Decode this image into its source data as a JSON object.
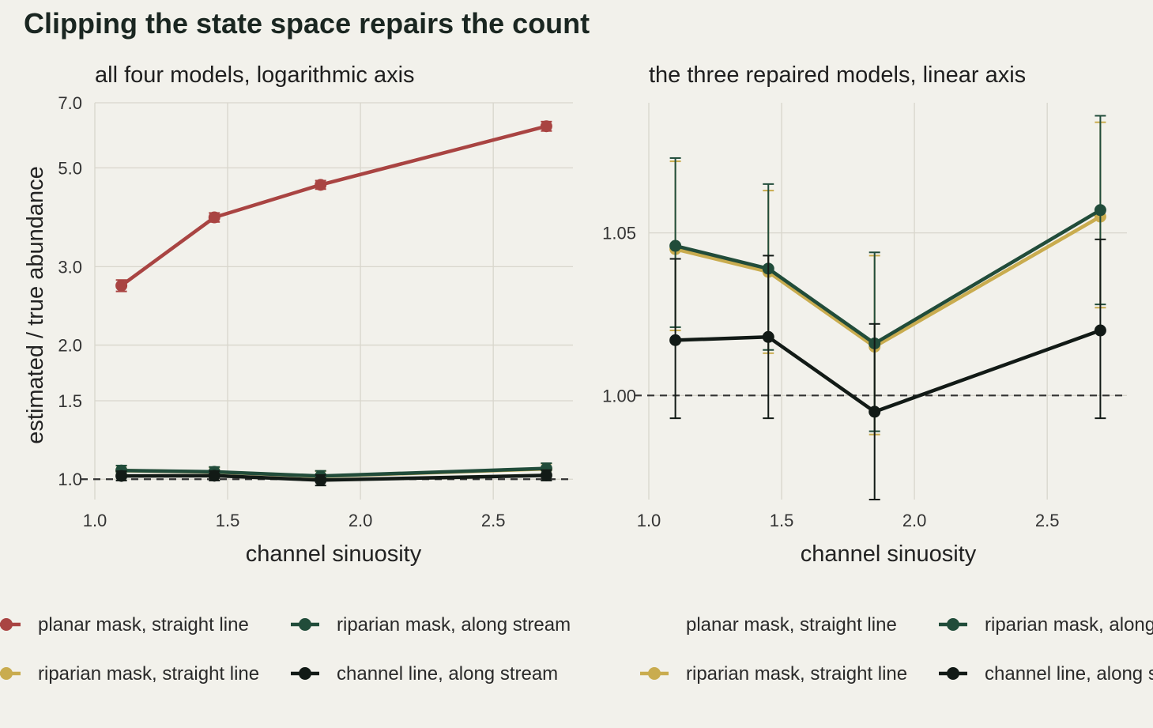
{
  "title": "Clipping the state space repairs the count",
  "colors": {
    "background": "#f2f1eb",
    "grid": "#d8d6cc",
    "planar_straight": "#a94442",
    "riparian_straight": "#c9ac4f",
    "riparian_along": "#214c3a",
    "channel_along": "#121a16",
    "reference_line": "#333333"
  },
  "chart_data": [
    {
      "type": "line",
      "panel_title": "all four models, logarithmic axis",
      "xlabel": "channel sinuosity",
      "ylabel": "estimated / true abundance",
      "x_scale": "linear",
      "y_scale": "log",
      "xlim": [
        1.0,
        2.8
      ],
      "ylim": [
        0.9,
        7.0
      ],
      "x_ticks": [
        "1.0",
        "1.5",
        "2.0",
        "2.5"
      ],
      "y_ticks": [
        "1.0",
        "1.5",
        "2.0",
        "3.0",
        "5.0",
        "7.0"
      ],
      "grid": true,
      "reference_line": 1.0,
      "x": [
        1.1,
        1.45,
        1.85,
        2.7
      ],
      "series": [
        {
          "name": "planar mask, straight line",
          "key": "planar_straight",
          "values": [
            2.72,
            3.87,
            4.58,
            6.2
          ],
          "lower": [
            2.64,
            3.78,
            4.48,
            6.05
          ],
          "upper": [
            2.8,
            3.96,
            4.68,
            6.35
          ]
        },
        {
          "name": "riparian mask, straight line",
          "key": "riparian_straight",
          "values": [
            1.045,
            1.038,
            1.015,
            1.055
          ],
          "lower": [
            1.02,
            1.013,
            0.988,
            1.027
          ],
          "upper": [
            1.072,
            1.063,
            1.043,
            1.084
          ]
        },
        {
          "name": "riparian mask, along stream",
          "key": "riparian_along",
          "values": [
            1.046,
            1.039,
            1.016,
            1.057
          ],
          "lower": [
            1.021,
            1.014,
            0.989,
            1.028
          ],
          "upper": [
            1.073,
            1.065,
            1.044,
            1.086
          ]
        },
        {
          "name": "channel line, along stream",
          "key": "channel_along",
          "values": [
            1.017,
            1.018,
            0.995,
            1.02
          ],
          "lower": [
            0.993,
            0.993,
            0.968,
            0.993
          ],
          "upper": [
            1.042,
            1.043,
            1.022,
            1.048
          ]
        }
      ]
    },
    {
      "type": "line",
      "panel_title": "the three repaired models, linear axis",
      "xlabel": "channel sinuosity",
      "ylabel": "",
      "x_scale": "linear",
      "y_scale": "linear",
      "xlim": [
        1.0,
        2.8
      ],
      "ylim": [
        0.968,
        1.09
      ],
      "x_ticks": [
        "1.0",
        "1.5",
        "2.0",
        "2.5"
      ],
      "y_ticks": [
        "1.00",
        "1.05"
      ],
      "grid": true,
      "reference_line": 1.0,
      "x": [
        1.1,
        1.45,
        1.85,
        2.7
      ],
      "series": [
        {
          "name": "riparian mask, straight line",
          "key": "riparian_straight",
          "values": [
            1.045,
            1.038,
            1.015,
            1.055
          ],
          "lower": [
            1.02,
            1.013,
            0.988,
            1.027
          ],
          "upper": [
            1.072,
            1.063,
            1.043,
            1.084
          ]
        },
        {
          "name": "riparian mask, along stream",
          "key": "riparian_along",
          "values": [
            1.046,
            1.039,
            1.016,
            1.057
          ],
          "lower": [
            1.021,
            1.014,
            0.989,
            1.028
          ],
          "upper": [
            1.073,
            1.065,
            1.044,
            1.086
          ]
        },
        {
          "name": "channel line, along stream",
          "key": "channel_along",
          "values": [
            1.017,
            1.018,
            0.995,
            1.02
          ],
          "lower": [
            0.993,
            0.993,
            0.968,
            0.993
          ],
          "upper": [
            1.042,
            1.043,
            1.022,
            1.048
          ]
        }
      ]
    }
  ],
  "legends": [
    {
      "items": [
        {
          "label": "planar mask, straight line",
          "key": "planar_straight"
        },
        {
          "label": "riparian mask, along stream",
          "key": "riparian_along"
        },
        {
          "label": "riparian mask, straight line",
          "key": "riparian_straight"
        },
        {
          "label": "channel line, along stream",
          "key": "channel_along"
        }
      ]
    },
    {
      "items": [
        {
          "label": "planar mask, straight line",
          "key": null
        },
        {
          "label": "riparian mask, along stream",
          "key": "riparian_along"
        },
        {
          "label": "riparian mask, straight line",
          "key": "riparian_straight"
        },
        {
          "label": "channel line, along stream",
          "key": "channel_along"
        }
      ]
    }
  ]
}
